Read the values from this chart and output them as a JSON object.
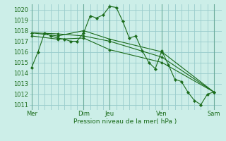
{
  "background_color": "#cceee8",
  "grid_color": "#99cccc",
  "line_color": "#1a6b1a",
  "text_color": "#1a6b1a",
  "xlabel_text": "Pression niveau de la mer( hPa )",
  "ylim": [
    1010.5,
    1020.5
  ],
  "yticks": [
    1011,
    1012,
    1013,
    1014,
    1015,
    1016,
    1017,
    1018,
    1019,
    1020
  ],
  "day_labels": [
    "Mer",
    "Dim",
    "Jeu",
    "Ven",
    "Sam"
  ],
  "day_positions": [
    0,
    48,
    72,
    120,
    168
  ],
  "xlim": [
    -2,
    175
  ],
  "lines": [
    {
      "x": [
        0,
        6,
        12,
        18,
        24,
        30,
        36,
        42,
        48,
        54,
        60,
        66,
        72,
        78,
        84,
        90,
        96,
        102,
        108,
        114,
        120,
        126,
        132,
        138,
        144,
        150,
        156,
        162,
        168
      ],
      "y": [
        1014.5,
        1016.0,
        1017.8,
        1017.5,
        1017.3,
        1017.2,
        1017.0,
        1017.0,
        1017.8,
        1019.4,
        1019.2,
        1019.5,
        1020.3,
        1020.2,
        1018.9,
        1017.3,
        1017.5,
        1016.1,
        1015.0,
        1014.4,
        1016.1,
        1014.8,
        1013.4,
        1013.2,
        1012.2,
        1011.4,
        1011.0,
        1012.0,
        1012.2
      ]
    },
    {
      "x": [
        0,
        24,
        48,
        72,
        120,
        168
      ],
      "y": [
        1017.8,
        1017.5,
        1018.0,
        1017.2,
        1016.0,
        1012.2
      ]
    },
    {
      "x": [
        0,
        24,
        48,
        72,
        120,
        168
      ],
      "y": [
        1017.8,
        1017.7,
        1017.5,
        1017.0,
        1015.5,
        1012.2
      ]
    },
    {
      "x": [
        0,
        24,
        48,
        72,
        120,
        168
      ],
      "y": [
        1017.5,
        1017.2,
        1017.3,
        1016.2,
        1015.0,
        1012.2
      ]
    }
  ]
}
